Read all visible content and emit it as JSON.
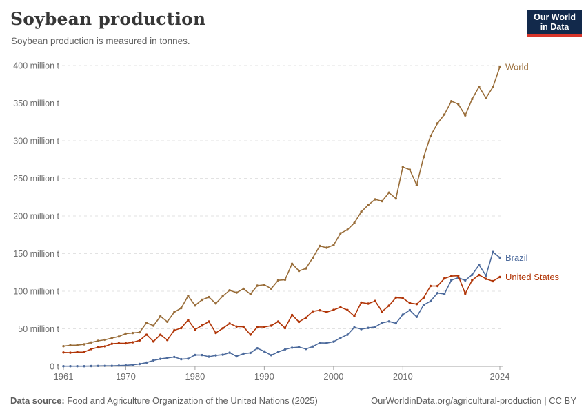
{
  "header": {
    "title": "Soybean production",
    "subtitle": "Soybean production is measured in tonnes.",
    "logo": {
      "line1": "Our World",
      "line2": "in Data",
      "bg_color": "#12294b",
      "bar_color": "#d8352a",
      "text_color": "#ffffff"
    }
  },
  "footer": {
    "source_label": "Data source:",
    "source_text": " Food and Agriculture Organization of the United Nations (2025)",
    "credit": "OurWorldinData.org/agricultural-production | CC BY"
  },
  "chart_data": {
    "type": "line",
    "title": "Soybean production",
    "subtitle": "Soybean production is measured in tonnes.",
    "ylabel": "",
    "xlabel": "",
    "unit": "million tonnes",
    "grid": "horizontal dashed",
    "legend_position": "end-of-line labels",
    "xlim": [
      1961,
      2024
    ],
    "ylim": [
      0,
      400
    ],
    "x_ticks": [
      1961,
      1970,
      1980,
      1990,
      2000,
      2010,
      2024
    ],
    "y_ticks": [
      {
        "value": 0,
        "label": "0 t"
      },
      {
        "value": 50,
        "label": "50 million t"
      },
      {
        "value": 100,
        "label": "100 million t"
      },
      {
        "value": 150,
        "label": "150 million t"
      },
      {
        "value": 200,
        "label": "200 million t"
      },
      {
        "value": 250,
        "label": "250 million t"
      },
      {
        "value": 300,
        "label": "300 million t"
      },
      {
        "value": 350,
        "label": "350 million t"
      },
      {
        "value": 400,
        "label": "400 million t"
      }
    ],
    "x": [
      1961,
      1962,
      1963,
      1964,
      1965,
      1966,
      1967,
      1968,
      1969,
      1970,
      1971,
      1972,
      1973,
      1974,
      1975,
      1976,
      1977,
      1978,
      1979,
      1980,
      1981,
      1982,
      1983,
      1984,
      1985,
      1986,
      1987,
      1988,
      1989,
      1990,
      1991,
      1992,
      1993,
      1994,
      1995,
      1996,
      1997,
      1998,
      1999,
      2000,
      2001,
      2002,
      2003,
      2004,
      2005,
      2006,
      2007,
      2008,
      2009,
      2010,
      2011,
      2012,
      2013,
      2014,
      2015,
      2016,
      2017,
      2018,
      2019,
      2020,
      2021,
      2022,
      2023,
      2024
    ],
    "series": [
      {
        "name": "World",
        "color": "#996d39",
        "values": [
          26.9,
          28.1,
          28.3,
          29.4,
          31.8,
          33.9,
          35.3,
          37.7,
          39.6,
          43.7,
          44.4,
          45.4,
          57.9,
          54.1,
          66.5,
          59.4,
          72.1,
          77.5,
          93.8,
          81.0,
          88.5,
          92.1,
          83.7,
          93.4,
          101.2,
          98.1,
          103.2,
          96.1,
          107.3,
          108.5,
          103.3,
          114.5,
          115.2,
          136.5,
          127.0,
          130.2,
          144.4,
          160.1,
          157.8,
          161.3,
          177.0,
          181.7,
          190.7,
          205.5,
          214.6,
          222.0,
          219.7,
          231.0,
          223.2,
          265.0,
          261.6,
          241.1,
          278.3,
          306.4,
          323.2,
          334.9,
          352.6,
          348.7,
          333.7,
          355.4,
          371.7,
          357.0,
          371.4,
          398.2
        ]
      },
      {
        "name": "Brazil",
        "color": "#4c6a9c",
        "values": [
          0.3,
          0.3,
          0.3,
          0.3,
          0.5,
          0.6,
          0.7,
          0.7,
          1.1,
          1.5,
          2.1,
          3.2,
          5.0,
          7.9,
          9.9,
          11.2,
          12.5,
          9.5,
          10.2,
          15.2,
          15.0,
          12.8,
          14.6,
          15.5,
          18.3,
          13.3,
          17.0,
          18.0,
          24.1,
          19.9,
          14.9,
          19.2,
          22.6,
          24.9,
          25.7,
          23.2,
          26.4,
          31.3,
          31.0,
          32.8,
          37.9,
          42.1,
          51.9,
          49.5,
          51.2,
          52.5,
          57.9,
          59.8,
          57.3,
          68.8,
          74.8,
          65.8,
          81.7,
          86.8,
          97.5,
          96.3,
          114.7,
          117.9,
          114.3,
          121.8,
          134.9,
          120.7,
          152.1,
          144.6
        ]
      },
      {
        "name": "United States",
        "color": "#b13507",
        "values": [
          18.5,
          18.3,
          19.0,
          19.1,
          23.0,
          25.3,
          26.6,
          30.1,
          30.8,
          30.7,
          32.0,
          34.6,
          42.1,
          33.1,
          42.1,
          35.1,
          48.0,
          50.9,
          61.7,
          48.9,
          54.4,
          59.6,
          44.5,
          50.6,
          57.1,
          52.9,
          52.7,
          42.2,
          52.4,
          52.4,
          54.1,
          59.6,
          50.9,
          68.4,
          59.2,
          64.8,
          73.2,
          74.6,
          72.2,
          75.1,
          78.7,
          75.0,
          66.8,
          85.0,
          83.5,
          87.0,
          72.9,
          80.7,
          91.5,
          90.7,
          84.2,
          82.8,
          91.4,
          106.9,
          106.9,
          116.9,
          120.1,
          120.5,
          96.7,
          114.7,
          121.5,
          116.4,
          113.3,
          118.8
        ]
      }
    ],
    "style": {
      "gridline_color": "#e2e2e2",
      "axis_color": "#a3a3a3",
      "tick_label_color": "#6e6e6e"
    }
  }
}
